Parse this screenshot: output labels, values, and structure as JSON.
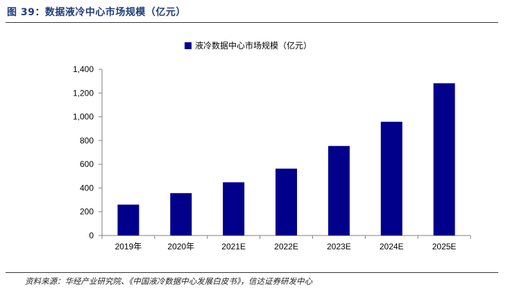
{
  "figure": {
    "title": "图 39：数据液冷中心市场规模（亿元）",
    "source": "资料来源：华经产业研究院、《中国液冷数据中心发展白皮书》，信达证券研发中心"
  },
  "colors": {
    "bar": "#00008b",
    "axis": "#7f7f7f",
    "title": "#1f3d7a"
  },
  "chart_data": {
    "type": "bar",
    "categories": [
      "2019年",
      "2020年",
      "2021E",
      "2022E",
      "2023E",
      "2024E",
      "2025E"
    ],
    "series": [
      {
        "name": "液冷数据中心市场规模（亿元）",
        "values": [
          260,
          357,
          448,
          563,
          754,
          958,
          1282
        ]
      }
    ],
    "ylim": [
      0,
      1400
    ],
    "yticks": [
      0,
      200,
      400,
      600,
      800,
      1000,
      1200,
      1400
    ],
    "ytick_labels": [
      "0",
      "200",
      "400",
      "600",
      "800",
      "1,000",
      "1,200",
      "1,400"
    ],
    "legend_position": "top-center",
    "grid": false
  }
}
